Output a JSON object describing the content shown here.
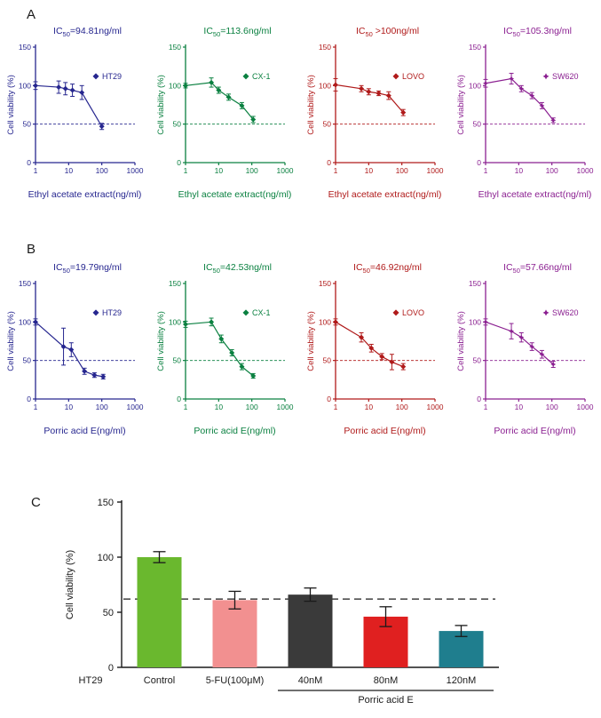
{
  "panels": {
    "a": "A",
    "b": "B",
    "c": "C"
  },
  "chart_data": [
    {
      "type": "line",
      "panel": "A",
      "cell_line": "HT29",
      "ic_prefix": "IC",
      "ic_sub": "50",
      "ic_value": "=94.81ng/ml",
      "legend": "HT29",
      "marker": "diamond",
      "color": "#26268f",
      "xlabel": "Ethyl acetate extract(ng/ml)",
      "ylabel": "Cell viability (%)",
      "xscale": "log",
      "xticks": [
        1,
        10,
        100,
        1000
      ],
      "yticks": [
        0,
        50,
        100,
        150
      ],
      "ylim": [
        0,
        150
      ],
      "dashed_y": 50,
      "x": [
        1,
        5,
        8,
        13,
        25,
        100
      ],
      "y": [
        100,
        98,
        96,
        94,
        91,
        47
      ],
      "err": [
        5,
        8,
        8,
        8,
        9,
        4
      ]
    },
    {
      "type": "line",
      "panel": "A",
      "cell_line": "CX-1",
      "ic_prefix": "IC",
      "ic_sub": "50",
      "ic_value": "=113.6ng/ml",
      "legend": "CX-1",
      "marker": "diamond",
      "color": "#0a8040",
      "xlabel": "Ethyl acetate extract(ng/ml)",
      "ylabel": "Cell viability (%)",
      "xscale": "log",
      "xticks": [
        1,
        10,
        100,
        1000
      ],
      "yticks": [
        0,
        50,
        100,
        150
      ],
      "ylim": [
        0,
        150
      ],
      "dashed_y": 50,
      "x": [
        1,
        6,
        10,
        20,
        50,
        110
      ],
      "y": [
        100,
        104,
        94,
        85,
        74,
        56
      ],
      "err": [
        3,
        6,
        4,
        4,
        4,
        4
      ]
    },
    {
      "type": "line",
      "panel": "A",
      "cell_line": "LOVO",
      "ic_prefix": "IC",
      "ic_sub": "50",
      "ic_value": " >100ng/ml",
      "legend": "LOVO",
      "marker": "diamond",
      "color": "#b01a1a",
      "xlabel": "Ethyl acetate extract(ng/ml)",
      "ylabel": "Cell viability (%)",
      "xscale": "log",
      "xticks": [
        1,
        10,
        100,
        1000
      ],
      "yticks": [
        0,
        50,
        100,
        150
      ],
      "ylim": [
        0,
        150
      ],
      "dashed_y": 50,
      "x": [
        1,
        6,
        10,
        20,
        40,
        110
      ],
      "y": [
        101,
        96,
        92,
        90,
        87,
        65
      ],
      "err": [
        8,
        4,
        4,
        3,
        5,
        4
      ]
    },
    {
      "type": "line",
      "panel": "A",
      "cell_line": "SW620",
      "ic_prefix": "IC",
      "ic_sub": "50",
      "ic_value": "=105.3ng/ml",
      "legend": "SW620",
      "marker": "star",
      "color": "#8b2091",
      "xlabel": "Ethyl acetate extract(ng/ml)",
      "ylabel": "Cell viability (%)",
      "xscale": "log",
      "xticks": [
        1,
        10,
        100,
        1000
      ],
      "yticks": [
        0,
        50,
        100,
        150
      ],
      "ylim": [
        0,
        150
      ],
      "dashed_y": 50,
      "x": [
        1,
        6,
        12,
        25,
        50,
        110
      ],
      "y": [
        103,
        109,
        96,
        87,
        74,
        55
      ],
      "err": [
        5,
        7,
        4,
        4,
        4,
        3
      ]
    },
    {
      "type": "line",
      "panel": "B",
      "cell_line": "HT29",
      "ic_prefix": "IC",
      "ic_sub": "50",
      "ic_value": "=19.79ng/ml",
      "legend": "HT29",
      "marker": "diamond",
      "color": "#26268f",
      "xlabel": "Porric acid E(ng/ml)",
      "ylabel": "Cell viability (%)",
      "xscale": "log",
      "xticks": [
        1,
        10,
        100,
        1000
      ],
      "yticks": [
        0,
        50,
        100,
        150
      ],
      "ylim": [
        0,
        150
      ],
      "dashed_y": 50,
      "x": [
        1,
        7,
        12,
        30,
        60,
        110
      ],
      "y": [
        100,
        68,
        64,
        36,
        31,
        29
      ],
      "err": [
        4,
        24,
        9,
        4,
        3,
        3
      ]
    },
    {
      "type": "line",
      "panel": "B",
      "cell_line": "CX-1",
      "ic_prefix": "IC",
      "ic_sub": "50",
      "ic_value": "=42.53ng/ml",
      "legend": "CX-1",
      "marker": "diamond",
      "color": "#0a8040",
      "xlabel": "Porric acid E(ng/ml)",
      "ylabel": "Cell viability (%)",
      "xscale": "log",
      "xticks": [
        1,
        10,
        100,
        1000
      ],
      "yticks": [
        0,
        50,
        100,
        150
      ],
      "ylim": [
        0,
        150
      ],
      "dashed_y": 50,
      "x": [
        1,
        6,
        12,
        25,
        50,
        110
      ],
      "y": [
        97,
        100,
        78,
        60,
        42,
        30
      ],
      "err": [
        4,
        5,
        5,
        4,
        4,
        3
      ]
    },
    {
      "type": "line",
      "panel": "B",
      "cell_line": "LOVO",
      "ic_prefix": "IC",
      "ic_sub": "50",
      "ic_value": "=46.92ng/ml",
      "legend": "LOVO",
      "marker": "diamond",
      "color": "#b01a1a",
      "xlabel": "Porric acid E(ng/ml)",
      "ylabel": "Cell viability (%)",
      "xscale": "log",
      "xticks": [
        1,
        10,
        100,
        1000
      ],
      "yticks": [
        0,
        50,
        100,
        150
      ],
      "ylim": [
        0,
        150
      ],
      "dashed_y": 50,
      "x": [
        1,
        6,
        12,
        25,
        50,
        110
      ],
      "y": [
        100,
        80,
        66,
        55,
        48,
        42
      ],
      "err": [
        4,
        6,
        5,
        4,
        10,
        4
      ]
    },
    {
      "type": "line",
      "panel": "B",
      "cell_line": "SW620",
      "ic_prefix": "IC",
      "ic_sub": "50",
      "ic_value": "=57.66ng/ml",
      "legend": "SW620",
      "marker": "star",
      "color": "#8b2091",
      "xlabel": "Porric acid E(ng/ml)",
      "ylabel": "Cell viability (%)",
      "xscale": "log",
      "xticks": [
        1,
        10,
        100,
        1000
      ],
      "yticks": [
        0,
        50,
        100,
        150
      ],
      "ylim": [
        0,
        150
      ],
      "dashed_y": 50,
      "x": [
        1,
        6,
        12,
        25,
        50,
        110
      ],
      "y": [
        100,
        88,
        80,
        68,
        58,
        45
      ],
      "err": [
        4,
        10,
        6,
        5,
        5,
        4
      ]
    },
    {
      "type": "bar",
      "panel": "C",
      "ylabel": "Cell viability (%)",
      "yticks": [
        0,
        50,
        100,
        150
      ],
      "ylim": [
        0,
        150
      ],
      "row_label": "HT29",
      "categories": [
        "Control",
        "5-FU(100μM)",
        "40nM",
        "80nM",
        "120nM"
      ],
      "values": [
        100,
        61,
        66,
        46,
        33
      ],
      "errors": [
        5,
        8,
        6,
        9,
        5
      ],
      "colors": [
        "#6ab82e",
        "#f29090",
        "#3a3a3a",
        "#e02020",
        "#1f7e8e"
      ],
      "dashed_y": 62,
      "group_label": "Porric acid E",
      "group_range": [
        2,
        4
      ]
    }
  ]
}
